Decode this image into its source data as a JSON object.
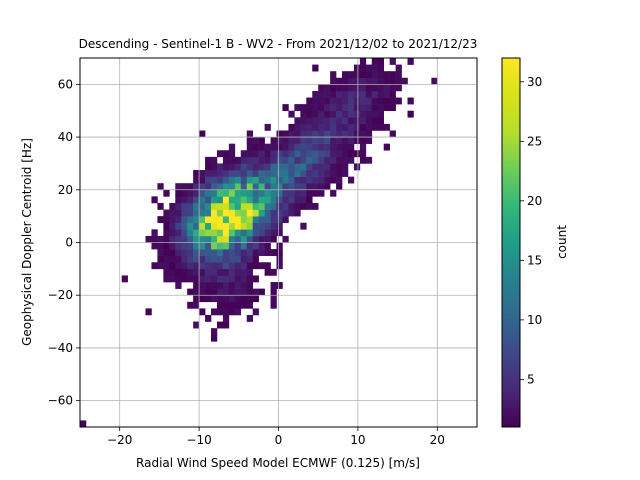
{
  "chart_data": {
    "type": "heatmap",
    "title": "Descending - Sentinel-1 B - WV2 - From 2021/12/02 to 2021/12/23",
    "xlabel": "Radial Wind Speed Model ECMWF (0.125) [m/s]",
    "ylabel": "Geophysical Doppler Centroid [Hz]",
    "xlim": [
      -25,
      25
    ],
    "ylim": [
      -70,
      70
    ],
    "xticks": [
      -20,
      -10,
      0,
      10,
      20
    ],
    "yticks": [
      -60,
      -40,
      -20,
      0,
      20,
      40,
      60
    ],
    "grid": true,
    "bin_size": {
      "x": 0.75,
      "y": 2.5
    },
    "colorbar": {
      "label": "count",
      "colormap": "viridis",
      "range": [
        1,
        32
      ],
      "ticks": [
        5,
        10,
        15,
        20,
        25,
        30
      ]
    },
    "density_model": {
      "components": [
        {
          "cx": -6.5,
          "cy": 10,
          "sx": 3.2,
          "sy": 9.5,
          "rho": 0.35,
          "peak": 31
        },
        {
          "cx": 2,
          "cy": 28,
          "sx": 4.5,
          "sy": 12,
          "rho": 0.72,
          "peak": 8
        },
        {
          "cx": 10,
          "cy": 55,
          "sx": 3.5,
          "sy": 8,
          "rho": 0.4,
          "peak": 3
        },
        {
          "cx": -6,
          "cy": -15,
          "sx": 2.5,
          "sy": 9,
          "rho": 0.1,
          "peak": 2.5
        }
      ]
    }
  }
}
